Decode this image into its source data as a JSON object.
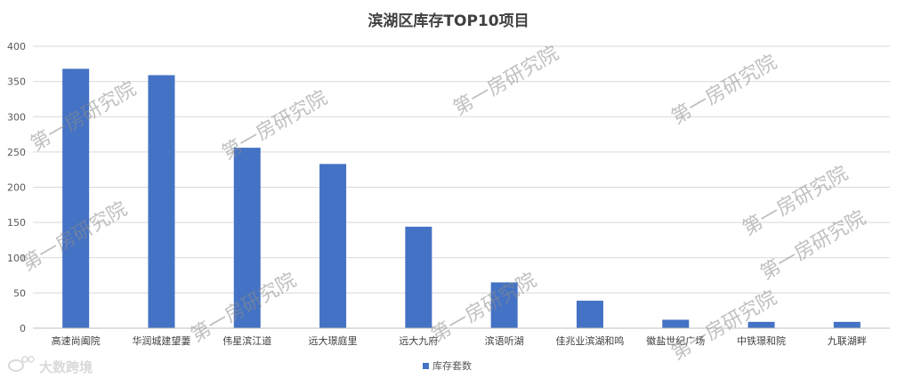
{
  "chart_data": {
    "type": "bar",
    "title": "滨湖区库存TOP10项目",
    "categories": [
      "高速尚阖院",
      "华润城建望萋",
      "伟星滨江道",
      "远大璟庭里",
      "远大九府",
      "滨语听湖",
      "佳兆业滨湖和鸣",
      "徽盐世纪广场",
      "中铁璟和院",
      "九联湖畔"
    ],
    "series": [
      {
        "name": "库存套数",
        "color": "#4472c4",
        "values": [
          368,
          359,
          256,
          233,
          144,
          65,
          39,
          12,
          9,
          9
        ]
      }
    ],
    "ylim": [
      0,
      400
    ],
    "yticks": [
      0,
      50,
      100,
      150,
      200,
      250,
      300,
      350,
      400
    ],
    "grid": true,
    "legend_position": "bottom"
  },
  "watermark": {
    "text": "第一房研究院",
    "brand": "大数跨境",
    "brand_icon": "weibo-icon"
  }
}
